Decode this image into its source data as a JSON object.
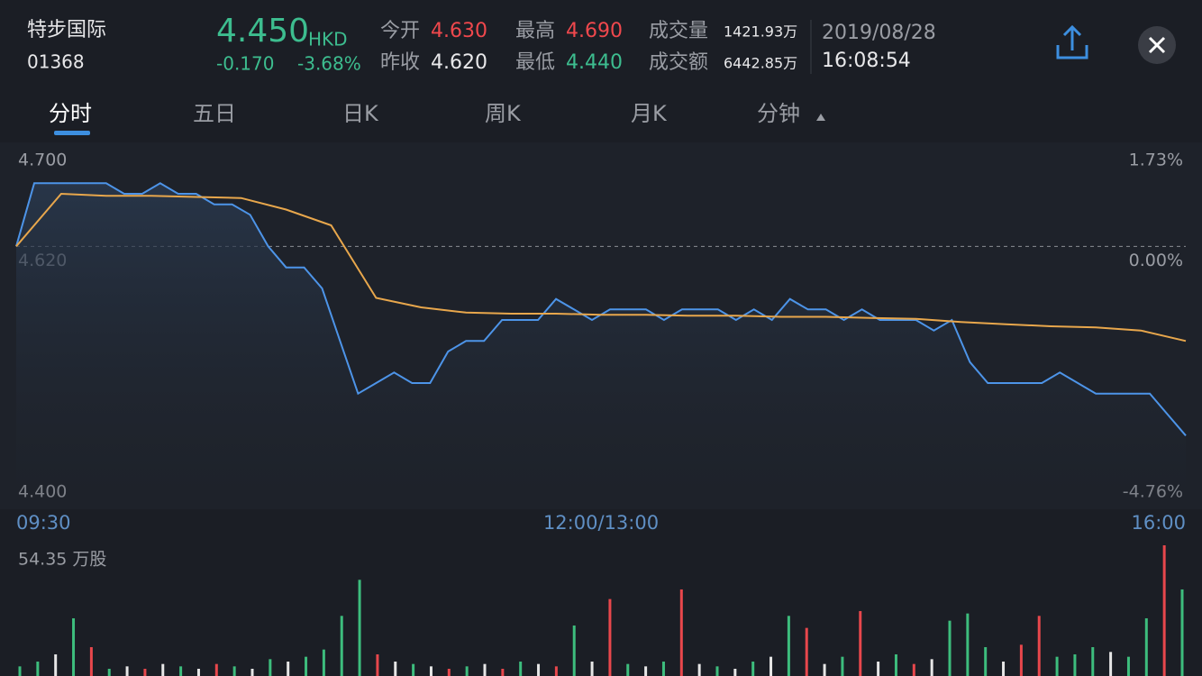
{
  "header": {
    "name": "特步国际",
    "code": "01368",
    "price": "4.450",
    "currency": "HKD",
    "change": "-0.170",
    "change_pct": "-3.68%",
    "open_label": "今开",
    "open": "4.630",
    "prev_close_label": "昨收",
    "prev_close": "4.620",
    "high_label": "最高",
    "high": "4.690",
    "low_label": "最低",
    "low": "4.440",
    "volume_label": "成交量",
    "volume": "1421.93万",
    "turnover_label": "成交额",
    "turnover": "6442.85万",
    "date": "2019/08/28",
    "time": "16:08:54"
  },
  "tabs": [
    "分时",
    "五日",
    "日K",
    "周K",
    "月K",
    "分钟"
  ],
  "chart_data": [
    {
      "type": "line",
      "ylim": [
        4.4,
        4.7
      ],
      "yticks": [
        {
          "value": 4.7,
          "label": "4.700"
        },
        {
          "value": 4.62,
          "label": "4.620"
        },
        {
          "value": 4.4,
          "label": "4.400"
        }
      ],
      "y2lim": [
        -4.76,
        1.73
      ],
      "y2ticks": [
        {
          "value": 1.73,
          "label": "1.73%"
        },
        {
          "value": 0,
          "label": "0.00%"
        },
        {
          "value": -4.76,
          "label": "-4.76%"
        }
      ],
      "x_labels": [
        "09:30",
        "12:00/13:00",
        "16:00"
      ],
      "series": [
        {
          "color": "#4d94e8",
          "values": [
            4.62,
            4.68,
            4.68,
            4.68,
            4.68,
            4.68,
            4.67,
            4.67,
            4.68,
            4.67,
            4.67,
            4.66,
            4.66,
            4.65,
            4.62,
            4.6,
            4.6,
            4.58,
            4.53,
            4.48,
            4.49,
            4.5,
            4.49,
            4.49,
            4.52,
            4.53,
            4.53,
            4.55,
            4.55,
            4.55,
            4.57,
            4.56,
            4.55,
            4.56,
            4.56,
            4.56,
            4.55,
            4.56,
            4.56,
            4.56,
            4.55,
            4.56,
            4.55,
            4.57,
            4.56,
            4.56,
            4.55,
            4.56,
            4.55,
            4.55,
            4.55,
            4.54,
            4.55,
            4.51,
            4.49,
            4.49,
            4.49,
            4.49,
            4.5,
            4.49,
            4.48,
            4.48,
            4.48,
            4.48,
            4.46,
            4.44
          ]
        },
        {
          "color": "#e8a74c",
          "values": [
            4.62,
            4.67,
            4.668,
            4.668,
            4.667,
            4.666,
            4.655,
            4.64,
            4.571,
            4.562,
            4.557,
            4.556,
            4.556,
            4.555,
            4.555,
            4.554,
            4.554,
            4.553,
            4.553,
            4.552,
            4.551,
            4.548,
            4.546,
            4.544,
            4.543,
            4.54,
            4.53
          ]
        }
      ]
    },
    {
      "type": "bar",
      "ylim": [
        0,
        54.35
      ],
      "yticks": [
        {
          "value": 54.35,
          "label": "54.35 万股"
        }
      ],
      "values": [
        4,
        6,
        9,
        24,
        12,
        3,
        4,
        3,
        5,
        4,
        3,
        5,
        4,
        3,
        7,
        6,
        8,
        11,
        25,
        40,
        9,
        6,
        5,
        4,
        3,
        4,
        5,
        3,
        6,
        5,
        4,
        21,
        6,
        32,
        5,
        4,
        6,
        36,
        5,
        4,
        3,
        6,
        8,
        25,
        20,
        5,
        8,
        27,
        6,
        9,
        5,
        7,
        23,
        26,
        12,
        6,
        13,
        25,
        8,
        9,
        12,
        10,
        8,
        24,
        54.35,
        36
      ],
      "colors": [
        "#3dbd7d",
        "#3dbd7d",
        "#e6e6e6",
        "#3dbd7d",
        "#e8474c",
        "#3dbd7d",
        "#e6e6e6",
        "#e8474c",
        "#e6e6e6",
        "#3dbd7d",
        "#e6e6e6",
        "#e8474c",
        "#3dbd7d",
        "#e6e6e6",
        "#3dbd7d",
        "#e6e6e6",
        "#3dbd7d",
        "#3dbd7d",
        "#3dbd7d",
        "#3dbd7d",
        "#e8474c",
        "#e6e6e6",
        "#3dbd7d",
        "#e6e6e6",
        "#e8474c",
        "#3dbd7d",
        "#e6e6e6",
        "#e8474c",
        "#3dbd7d",
        "#e6e6e6",
        "#e8474c",
        "#3dbd7d",
        "#e6e6e6",
        "#e8474c",
        "#3dbd7d",
        "#e6e6e6",
        "#3dbd7d",
        "#e8474c",
        "#e6e6e6",
        "#3dbd7d",
        "#e6e6e6",
        "#3dbd7d",
        "#e6e6e6",
        "#3dbd7d",
        "#e8474c",
        "#e6e6e6",
        "#3dbd7d",
        "#e8474c",
        "#e6e6e6",
        "#3dbd7d",
        "#e8474c",
        "#e6e6e6",
        "#3dbd7d",
        "#3dbd7d",
        "#3dbd7d",
        "#e6e6e6",
        "#e8474c",
        "#e8474c",
        "#3dbd7d",
        "#3dbd7d",
        "#3dbd7d",
        "#e6e6e6",
        "#3dbd7d",
        "#3dbd7d",
        "#e8474c",
        "#3dbd7d"
      ]
    }
  ]
}
